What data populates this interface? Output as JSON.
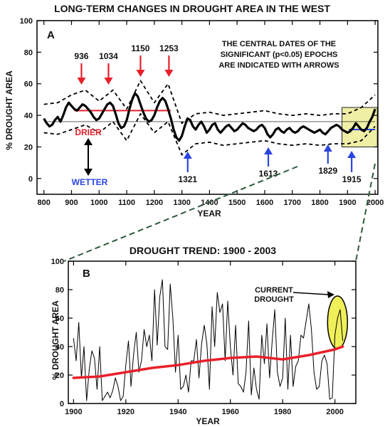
{
  "chart_data": [
    {
      "type": "line",
      "title": "LONG-TERM CHANGES IN DROUGHT AREA IN THE WEST",
      "panel": "A",
      "xlabel": "YEAR",
      "ylabel": "% DROUGHT AREA",
      "xlim": [
        775,
        2010
      ],
      "ylim": [
        -10,
        100
      ],
      "xticks": [
        800,
        900,
        1000,
        1100,
        1200,
        1300,
        1400,
        1500,
        1600,
        1700,
        1800,
        1900,
        2000
      ],
      "yticks": [
        0,
        20,
        40,
        60,
        80,
        100
      ],
      "note": [
        "THE CENTRAL DATES OF THE",
        "SIGNIFICANT (p<0.05) EPOCHS",
        "ARE INDICATED WITH ARROWS"
      ],
      "drier_label": "DRIER",
      "wetter_label": "WETTER",
      "drier_epochs": [
        {
          "label": "936",
          "year": 936
        },
        {
          "label": "1034",
          "year": 1034
        },
        {
          "label": "1150",
          "year": 1150
        },
        {
          "label": "1253",
          "year": 1253
        }
      ],
      "wetter_epochs": [
        {
          "label": "1321",
          "year": 1321
        },
        {
          "label": "1613",
          "year": 1613
        },
        {
          "label": "1829",
          "year": 1829
        },
        {
          "label": "1915",
          "year": 1915
        }
      ],
      "colors": {
        "drier": "#e8202a",
        "wetter": "#2a45e0",
        "highlight": "#efefa6",
        "line": "#000000"
      },
      "series": [
        {
          "role": "smoothed",
          "x": [
            800,
            810,
            820,
            830,
            840,
            850,
            860,
            870,
            880,
            890,
            900,
            910,
            920,
            930,
            940,
            950,
            960,
            970,
            980,
            990,
            1000,
            1010,
            1020,
            1030,
            1040,
            1050,
            1060,
            1070,
            1080,
            1090,
            1100,
            1110,
            1120,
            1130,
            1140,
            1150,
            1160,
            1170,
            1180,
            1190,
            1200,
            1210,
            1220,
            1230,
            1240,
            1250,
            1260,
            1270,
            1280,
            1290,
            1300,
            1310,
            1320,
            1330,
            1340,
            1350,
            1360,
            1370,
            1380,
            1390,
            1400,
            1410,
            1420,
            1430,
            1440,
            1450,
            1460,
            1470,
            1480,
            1490,
            1500,
            1510,
            1520,
            1530,
            1540,
            1550,
            1560,
            1570,
            1580,
            1590,
            1600,
            1610,
            1620,
            1630,
            1640,
            1650,
            1660,
            1670,
            1680,
            1690,
            1700,
            1710,
            1720,
            1730,
            1740,
            1750,
            1760,
            1770,
            1780,
            1790,
            1800,
            1810,
            1820,
            1830,
            1840,
            1850,
            1860,
            1870,
            1880,
            1890,
            1900,
            1910,
            1920,
            1930,
            1940,
            1950,
            1960,
            1970,
            1980,
            1990,
            2000
          ],
          "y": [
            38,
            35,
            33,
            34,
            37,
            39,
            36,
            40,
            45,
            48,
            46,
            44,
            43,
            45,
            47,
            46,
            44,
            42,
            39,
            37,
            38,
            41,
            44,
            47,
            48,
            46,
            41,
            35,
            32,
            33,
            37,
            44,
            50,
            54,
            52,
            47,
            42,
            38,
            36,
            37,
            40,
            45,
            49,
            51,
            49,
            44,
            38,
            31,
            26,
            24,
            27,
            33,
            38,
            37,
            33,
            31,
            34,
            36,
            33,
            29,
            31,
            34,
            35,
            31,
            29,
            31,
            33,
            34,
            32,
            30,
            31,
            33,
            35,
            34,
            32,
            31,
            30,
            31,
            33,
            34,
            32,
            28,
            26,
            28,
            31,
            32,
            30,
            29,
            31,
            32,
            30,
            29,
            30,
            32,
            33,
            32,
            31,
            30,
            29,
            30,
            31,
            29,
            28,
            30,
            32,
            33,
            34,
            33,
            31,
            30,
            29,
            30,
            32,
            35,
            33,
            31,
            30,
            32,
            36,
            39,
            44
          ]
        },
        {
          "role": "upper-bound",
          "x": [
            800,
            850,
            900,
            950,
            1000,
            1050,
            1100,
            1150,
            1200,
            1250,
            1300,
            1350,
            1400,
            1450,
            1500,
            1550,
            1600,
            1650,
            1700,
            1750,
            1800,
            1850,
            1900,
            1950,
            2000
          ],
          "y": [
            47,
            48,
            53,
            56,
            49,
            56,
            44,
            62,
            48,
            60,
            35,
            41,
            42,
            40,
            41,
            42,
            43,
            41,
            40,
            41,
            40,
            41,
            41,
            45,
            53
          ]
        },
        {
          "role": "lower-bound",
          "x": [
            800,
            850,
            900,
            950,
            1000,
            1050,
            1100,
            1150,
            1200,
            1250,
            1300,
            1350,
            1400,
            1450,
            1500,
            1550,
            1600,
            1650,
            1700,
            1750,
            1800,
            1850,
            1900,
            1950,
            2000
          ],
          "y": [
            29,
            28,
            31,
            34,
            29,
            36,
            24,
            41,
            29,
            36,
            15,
            22,
            23,
            21,
            22,
            23,
            24,
            22,
            21,
            22,
            21,
            22,
            22,
            24,
            33
          ]
        },
        {
          "role": "drier-mean",
          "x": [
            910,
            1260
          ],
          "y": [
            43,
            43
          ]
        },
        {
          "role": "wetter-mean",
          "x": [
            1905,
            2000
          ],
          "y": [
            31,
            31
          ]
        }
      ]
    },
    {
      "type": "line",
      "title": "DROUGHT TREND:  1900 - 2003",
      "panel": "B",
      "xlabel": "YEAR",
      "ylabel": "% DROUGHT AREA",
      "xlim": [
        1898,
        2008
      ],
      "ylim": [
        0,
        100
      ],
      "xticks": [
        1900,
        1920,
        1940,
        1960,
        1980,
        2000
      ],
      "yticks": [
        0,
        20,
        40,
        60,
        80,
        100
      ],
      "annotation": [
        "CURRENT",
        "DROUGHT"
      ],
      "colors": {
        "trend": "#e8202a",
        "highlight": "#efef5a",
        "line": "#000000"
      },
      "series": [
        {
          "role": "annual",
          "x": [
            1900,
            1901,
            1902,
            1903,
            1904,
            1905,
            1906,
            1907,
            1908,
            1909,
            1910,
            1911,
            1912,
            1913,
            1914,
            1915,
            1916,
            1917,
            1918,
            1919,
            1920,
            1921,
            1922,
            1923,
            1924,
            1925,
            1926,
            1927,
            1928,
            1929,
            1930,
            1931,
            1932,
            1933,
            1934,
            1935,
            1936,
            1937,
            1938,
            1939,
            1940,
            1941,
            1942,
            1943,
            1944,
            1945,
            1946,
            1947,
            1948,
            1949,
            1950,
            1951,
            1952,
            1953,
            1954,
            1955,
            1956,
            1957,
            1958,
            1959,
            1960,
            1961,
            1962,
            1963,
            1964,
            1965,
            1966,
            1967,
            1968,
            1969,
            1970,
            1971,
            1972,
            1973,
            1974,
            1975,
            1976,
            1977,
            1978,
            1979,
            1980,
            1981,
            1982,
            1983,
            1984,
            1985,
            1986,
            1987,
            1988,
            1989,
            1990,
            1991,
            1992,
            1993,
            1994,
            1995,
            1996,
            1997,
            1998,
            1999,
            2000,
            2001,
            2002,
            2003
          ],
          "y": [
            46,
            30,
            57,
            18,
            40,
            2,
            24,
            37,
            32,
            10,
            40,
            2,
            5,
            8,
            4,
            9,
            18,
            12,
            2,
            5,
            27,
            44,
            12,
            35,
            50,
            22,
            30,
            52,
            40,
            48,
            30,
            80,
            41,
            75,
            87,
            40,
            38,
            84,
            60,
            22,
            48,
            10,
            12,
            20,
            8,
            30,
            30,
            45,
            18,
            42,
            55,
            42,
            10,
            68,
            40,
            78,
            64,
            70,
            30,
            72,
            40,
            20,
            55,
            14,
            12,
            8,
            22,
            58,
            6,
            25,
            10,
            3,
            48,
            28,
            56,
            18,
            44,
            66,
            22,
            12,
            18,
            60,
            10,
            48,
            12,
            26,
            30,
            48,
            46,
            58,
            70,
            52,
            22,
            10,
            12,
            30,
            34,
            28,
            3,
            4,
            48,
            60,
            66,
            44
          ]
        },
        {
          "role": "trend",
          "x": [
            1900,
            1910,
            1920,
            1930,
            1940,
            1950,
            1960,
            1970,
            1980,
            1990,
            2000,
            2003
          ],
          "y": [
            18,
            19,
            22,
            25,
            27,
            30,
            32,
            33,
            31,
            34,
            38,
            40
          ]
        }
      ]
    }
  ]
}
